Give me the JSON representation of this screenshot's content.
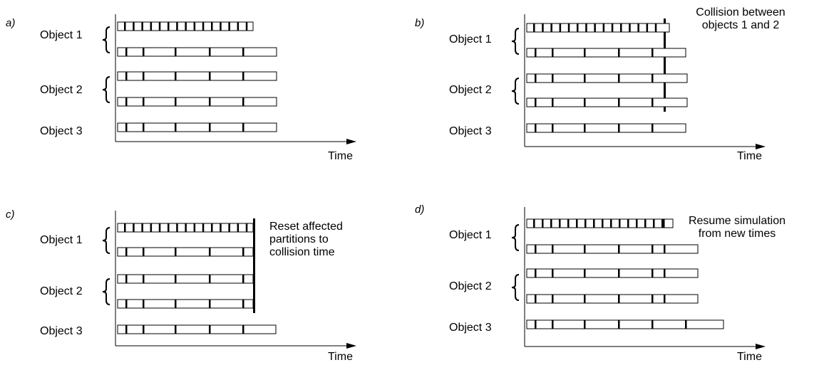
{
  "panels": [
    {
      "letter": "a)",
      "objects": [
        "Object 1",
        "Object 2",
        "Object 3"
      ],
      "time_label": "Time",
      "annotation": []
    },
    {
      "letter": "b)",
      "objects": [
        "Object 1",
        "Object 2",
        "Object 3"
      ],
      "time_label": "Time",
      "annotation": [
        "Collision between",
        "objects 1 and 2"
      ]
    },
    {
      "letter": "c)",
      "objects": [
        "Object 1",
        "Object 2",
        "Object 3"
      ],
      "time_label": "Time",
      "annotation": [
        "Reset affected",
        "partitions to",
        "collision time"
      ]
    },
    {
      "letter": "d)",
      "objects": [
        "Object 1",
        "Object 2",
        "Object 3"
      ],
      "time_label": "Time",
      "annotation": [
        "Resume simulation",
        "from new times"
      ]
    }
  ]
}
